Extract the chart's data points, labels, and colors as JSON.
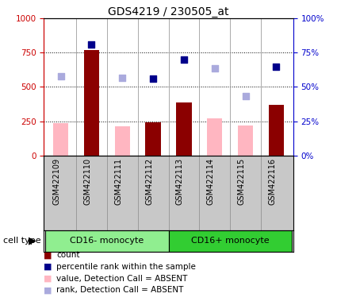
{
  "title": "GDS4219 / 230505_at",
  "samples": [
    "GSM422109",
    "GSM422110",
    "GSM422111",
    "GSM422112",
    "GSM422113",
    "GSM422114",
    "GSM422115",
    "GSM422116"
  ],
  "groups": [
    {
      "label": "CD16- monocyte",
      "color": "#90EE90",
      "indices": [
        0,
        1,
        2,
        3
      ]
    },
    {
      "label": "CD16+ monocyte",
      "color": "#32CD32",
      "indices": [
        4,
        5,
        6,
        7
      ]
    }
  ],
  "count_values": [
    null,
    770,
    null,
    245,
    385,
    null,
    null,
    370
  ],
  "count_absent_values": [
    235,
    null,
    215,
    null,
    null,
    270,
    220,
    null
  ],
  "percentile_values": [
    null,
    810,
    null,
    560,
    700,
    null,
    null,
    650
  ],
  "percentile_absent_values": [
    580,
    null,
    565,
    null,
    null,
    635,
    435,
    null
  ],
  "ylim_left": [
    0,
    1000
  ],
  "ylim_right": [
    0,
    100
  ],
  "yticks_left": [
    0,
    250,
    500,
    750,
    1000
  ],
  "yticks_right": [
    0,
    25,
    50,
    75,
    100
  ],
  "left_axis_color": "#CC0000",
  "right_axis_color": "#0000CC",
  "bar_color_present": "#8B0000",
  "bar_color_absent": "#FFB6C1",
  "dot_color_present": "#00008B",
  "dot_color_absent": "#AAAADD",
  "xlabels_bg": "#C8C8C8",
  "group_border_color": "#000000",
  "legend_items": [
    {
      "color": "#8B0000",
      "text": "count"
    },
    {
      "color": "#00008B",
      "text": "percentile rank within the sample"
    },
    {
      "color": "#FFB6C1",
      "text": "value, Detection Call = ABSENT"
    },
    {
      "color": "#AAAADD",
      "text": "rank, Detection Call = ABSENT"
    }
  ]
}
